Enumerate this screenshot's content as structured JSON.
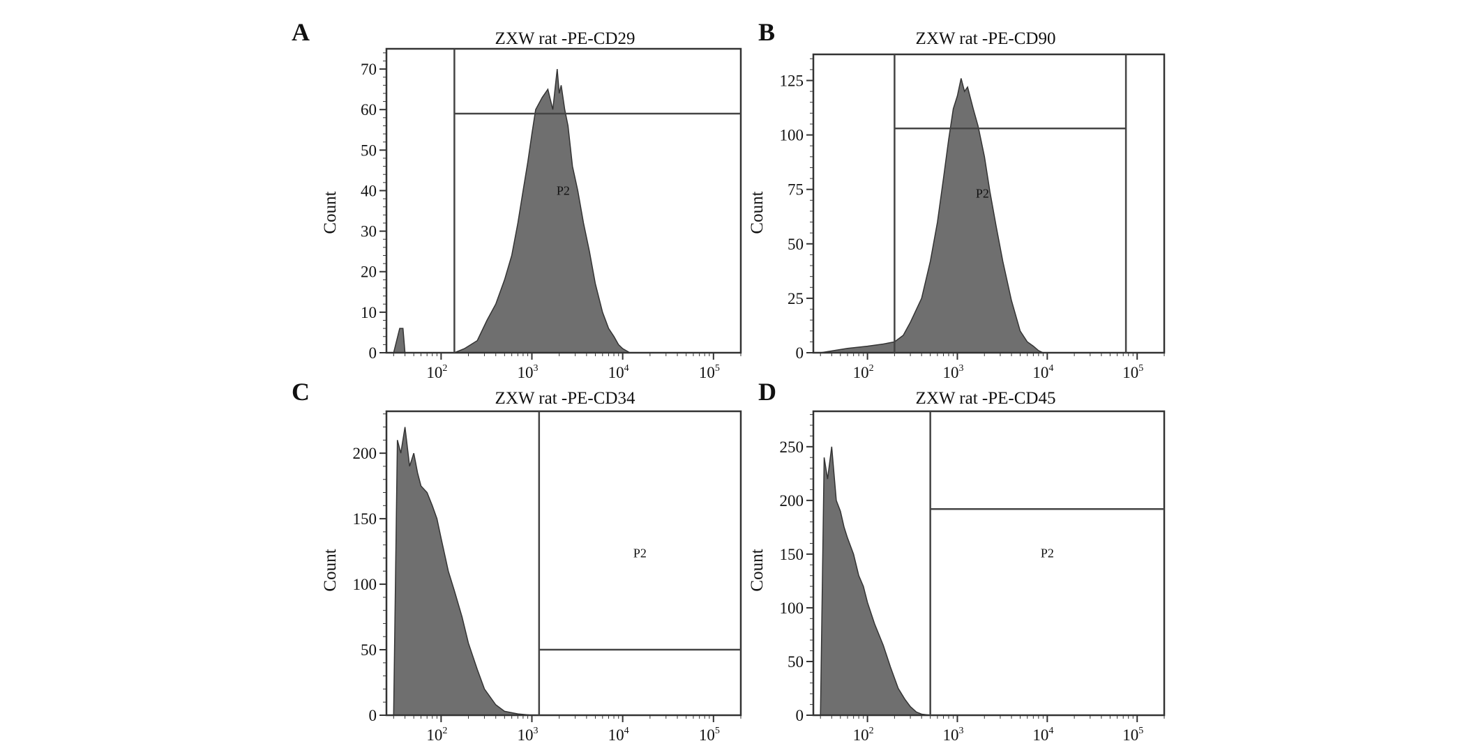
{
  "figure": {
    "colors": {
      "histogram_fill": "#6f6f6f",
      "histogram_edge": "#333333",
      "frame": "#333333",
      "gate": "#444444"
    }
  },
  "chart_data": [
    {
      "type": "area",
      "panel": "A",
      "title": "ZXW rat -PE-CD29",
      "ylabel": "Count",
      "xlabel": "",
      "xscale": "log",
      "xlim": [
        25,
        200000
      ],
      "ylim": [
        0,
        75
      ],
      "yticks": [
        0,
        10,
        20,
        30,
        40,
        50,
        60,
        70
      ],
      "xticks": [
        {
          "value": 100,
          "base": "10",
          "exp": "2"
        },
        {
          "value": 1000,
          "base": "10",
          "exp": "3"
        },
        {
          "value": 10000,
          "base": "10",
          "exp": "4"
        },
        {
          "value": 100000,
          "base": "10",
          "exp": "5"
        }
      ],
      "gate": {
        "label": "P2",
        "x_start": 140,
        "x_end": 200000,
        "count_line": 59
      },
      "series": [
        {
          "x": [
            30,
            35,
            38,
            40,
            42,
            140,
            180,
            250,
            320,
            400,
            500,
            600,
            700,
            800,
            900,
            1000,
            1100,
            1300,
            1500,
            1700,
            1900,
            2000,
            2100,
            2300,
            2500,
            2800,
            3200,
            3700,
            4300,
            5000,
            6000,
            7000,
            8000,
            9000,
            10000,
            12000,
            15000
          ],
          "y": [
            0,
            6,
            6,
            0,
            0,
            0,
            1,
            3,
            8,
            12,
            18,
            24,
            32,
            40,
            47,
            54,
            60,
            63,
            65,
            60,
            70,
            64,
            66,
            60,
            56,
            46,
            40,
            32,
            25,
            17,
            10,
            6,
            4,
            2,
            1,
            0,
            0
          ]
        }
      ]
    },
    {
      "type": "area",
      "panel": "B",
      "title": "ZXW rat -PE-CD90",
      "ylabel": "Count",
      "xlabel": "",
      "xscale": "log",
      "xlim": [
        25,
        200000
      ],
      "ylim": [
        0,
        137
      ],
      "yticks": [
        0,
        25,
        50,
        75,
        100,
        125
      ],
      "xticks": [
        {
          "value": 100,
          "base": "10",
          "exp": "2"
        },
        {
          "value": 1000,
          "base": "10",
          "exp": "3"
        },
        {
          "value": 10000,
          "base": "10",
          "exp": "4"
        },
        {
          "value": 100000,
          "base": "10",
          "exp": "5"
        }
      ],
      "gate": {
        "label": "P2",
        "x_start": 200,
        "x_end": 75000,
        "count_line": 103
      },
      "series": [
        {
          "x": [
            30,
            60,
            100,
            150,
            200,
            250,
            300,
            400,
            500,
            600,
            700,
            800,
            900,
            1000,
            1100,
            1200,
            1300,
            1500,
            1700,
            2000,
            2300,
            2700,
            3200,
            4000,
            5000,
            6000,
            7000,
            8000,
            9000,
            10000,
            12000
          ],
          "y": [
            0,
            2,
            3,
            4,
            5,
            8,
            14,
            25,
            42,
            60,
            80,
            98,
            112,
            118,
            126,
            120,
            122,
            112,
            104,
            90,
            74,
            58,
            42,
            24,
            10,
            5,
            3,
            1,
            0,
            0,
            0
          ]
        }
      ]
    },
    {
      "type": "area",
      "panel": "C",
      "title": "ZXW rat -PE-CD34",
      "ylabel": "Count",
      "xlabel": "",
      "xscale": "log",
      "xlim": [
        25,
        200000
      ],
      "ylim": [
        0,
        232
      ],
      "yticks": [
        0,
        50,
        100,
        150,
        200
      ],
      "xticks": [
        {
          "value": 100,
          "base": "10",
          "exp": "2"
        },
        {
          "value": 1000,
          "base": "10",
          "exp": "3"
        },
        {
          "value": 10000,
          "base": "10",
          "exp": "4"
        },
        {
          "value": 100000,
          "base": "10",
          "exp": "5"
        }
      ],
      "gate": {
        "label": "P2",
        "x_start": 1200,
        "x_end": 200000,
        "count_line": 50
      },
      "series": [
        {
          "x": [
            30,
            33,
            36,
            40,
            45,
            50,
            55,
            60,
            70,
            80,
            90,
            100,
            120,
            140,
            170,
            200,
            250,
            300,
            400,
            500,
            700,
            1000,
            1200
          ],
          "y": [
            0,
            210,
            200,
            220,
            190,
            200,
            185,
            175,
            170,
            160,
            150,
            135,
            110,
            95,
            75,
            55,
            35,
            20,
            8,
            3,
            1,
            0,
            0
          ]
        }
      ]
    },
    {
      "type": "area",
      "panel": "D",
      "title": "ZXW rat -PE-CD45",
      "ylabel": "Count",
      "xlabel": "",
      "xscale": "log",
      "xlim": [
        25,
        200000
      ],
      "ylim": [
        0,
        283
      ],
      "yticks": [
        0,
        50,
        100,
        150,
        200,
        250
      ],
      "xticks": [
        {
          "value": 100,
          "base": "10",
          "exp": "2"
        },
        {
          "value": 1000,
          "base": "10",
          "exp": "3"
        },
        {
          "value": 10000,
          "base": "10",
          "exp": "4"
        },
        {
          "value": 100000,
          "base": "10",
          "exp": "5"
        }
      ],
      "gate": {
        "label": "P2",
        "x_start": 500,
        "x_end": 200000,
        "count_line": 192
      },
      "series": [
        {
          "x": [
            30,
            33,
            36,
            40,
            45,
            50,
            55,
            60,
            70,
            80,
            90,
            100,
            120,
            150,
            180,
            220,
            260,
            300,
            350,
            400,
            500
          ],
          "y": [
            0,
            240,
            220,
            250,
            200,
            190,
            175,
            165,
            150,
            130,
            120,
            105,
            85,
            65,
            45,
            25,
            15,
            8,
            3,
            1,
            0
          ]
        }
      ]
    }
  ]
}
